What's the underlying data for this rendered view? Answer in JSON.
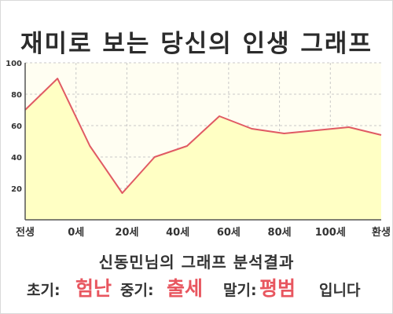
{
  "title": "재미로 보는 당신의 인생 그래프",
  "chart_data": {
    "type": "area",
    "title": "재미로 보는 당신의 인생 그래프",
    "x_tick_labels": [
      "전생",
      "0세",
      "20세",
      "40세",
      "60세",
      "80세",
      "100세",
      "환생"
    ],
    "y_ticks": [
      20,
      40,
      60,
      80,
      100
    ],
    "ylim": [
      0,
      100
    ],
    "grid": true,
    "series": [
      {
        "x": [
          "전생",
          "0세",
          "",
          "",
          "",
          "",
          "",
          "",
          "",
          "",
          "",
          "환생"
        ],
        "values": [
          70,
          90,
          47,
          17,
          40,
          47,
          66,
          58,
          55,
          57,
          59,
          54
        ]
      }
    ],
    "colors": {
      "line": "#e05a63",
      "fill": "#ffffc4",
      "plot_bg": "#fffef2",
      "grid": "#c8c8c8"
    }
  },
  "summary": {
    "title": "신동민님의 그래프 분석결과",
    "early_label": "초기:",
    "early_value": "험난",
    "mid_label": "중기:",
    "mid_value": "출세",
    "late_label": "말기:",
    "late_value": "평범",
    "suffix": "입니다"
  }
}
